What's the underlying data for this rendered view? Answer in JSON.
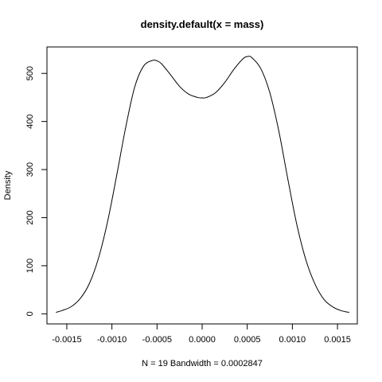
{
  "chart_data": {
    "type": "line",
    "title": "density.default(x = mass)",
    "xlabel": "N = 19   Bandwidth = 0.0002847",
    "ylabel": "Density",
    "xlim": [
      -0.00172,
      0.00172
    ],
    "ylim": [
      -21,
      555
    ],
    "x_ticks": [
      -0.0015,
      -0.001,
      -0.0005,
      0.0,
      0.0005,
      0.001,
      0.0015
    ],
    "x_tick_labels": [
      "-0.0015",
      "-0.0010",
      "-0.0005",
      "0.0000",
      "0.0005",
      "0.0010",
      "0.0015"
    ],
    "y_ticks": [
      0,
      100,
      200,
      300,
      400,
      500
    ],
    "y_tick_labels": [
      "0",
      "100",
      "200",
      "300",
      "400",
      "500"
    ],
    "grid": false,
    "series": [
      {
        "x": [
          -0.00162,
          -0.00155,
          -0.00145,
          -0.00135,
          -0.00125,
          -0.00115,
          -0.00105,
          -0.00095,
          -0.00085,
          -0.00075,
          -0.00065,
          -0.00055,
          -0.0005,
          -0.00045,
          -0.00035,
          -0.00025,
          -0.00015,
          -5e-05,
          0.0,
          5e-05,
          0.00015,
          0.00025,
          0.00035,
          0.00045,
          0.0005,
          0.00055,
          0.00065,
          0.00075,
          0.00085,
          0.00095,
          0.00105,
          0.00115,
          0.00125,
          0.00135,
          0.00145,
          0.00155,
          0.00163
        ],
        "y": [
          3,
          7,
          15,
          32,
          63,
          115,
          190,
          285,
          385,
          470,
          515,
          527,
          526,
          520,
          497,
          473,
          457,
          450,
          449,
          450,
          460,
          481,
          508,
          530,
          535,
          533,
          510,
          460,
          380,
          280,
          185,
          112,
          62,
          30,
          14,
          6,
          3
        ]
      }
    ]
  }
}
